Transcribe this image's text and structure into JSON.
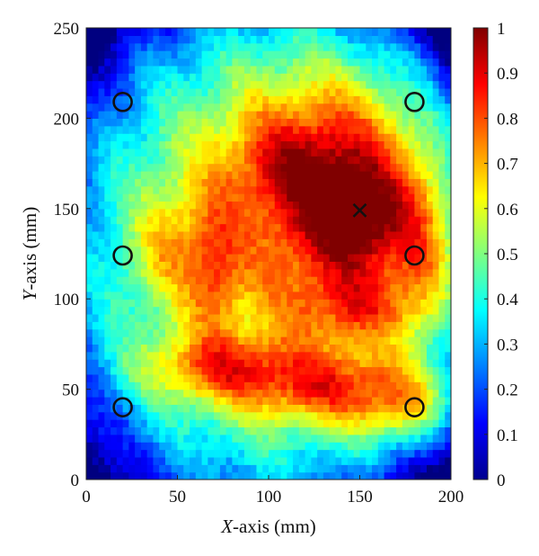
{
  "chart_data": {
    "type": "heatmap",
    "title": "",
    "xlabel_italic": "X",
    "xlabel_rest": "-axis (mm)",
    "ylabel_italic": "Y",
    "ylabel_rest": "-axis (mm)",
    "xlim": [
      0,
      200
    ],
    "ylim": [
      0,
      250
    ],
    "x_ticks": [
      "0",
      "50",
      "100",
      "150",
      "200"
    ],
    "y_ticks": [
      "0",
      "50",
      "100",
      "150",
      "200",
      "250"
    ],
    "colorbar": {
      "range": [
        0,
        1
      ],
      "ticks": [
        "0",
        "0.1",
        "0.2",
        "0.3",
        "0.4",
        "0.5",
        "0.6",
        "0.7",
        "0.8",
        "0.9",
        "1"
      ],
      "colormap": "jet"
    },
    "field_blobs": [
      {
        "x": 145,
        "y": 155,
        "sx": 45,
        "sy": 55,
        "amp": 0.38
      },
      {
        "x": 150,
        "y": 145,
        "sx": 18,
        "sy": 18,
        "amp": 0.22
      },
      {
        "x": 115,
        "y": 175,
        "sx": 28,
        "sy": 20,
        "amp": 0.18
      },
      {
        "x": 140,
        "y": 50,
        "sx": 45,
        "sy": 14,
        "amp": 0.3
      },
      {
        "x": 70,
        "y": 63,
        "sx": 30,
        "sy": 12,
        "amp": 0.26
      },
      {
        "x": 175,
        "y": 35,
        "sx": 20,
        "sy": 14,
        "amp": 0.22
      },
      {
        "x": 70,
        "y": 115,
        "sx": 10,
        "sy": 25,
        "amp": 0.22
      },
      {
        "x": 45,
        "y": 130,
        "sx": 14,
        "sy": 20,
        "amp": 0.16
      },
      {
        "x": 150,
        "y": 95,
        "sx": 22,
        "sy": 10,
        "amp": 0.14
      },
      {
        "x": 185,
        "y": 120,
        "sx": 12,
        "sy": 30,
        "amp": 0.14
      }
    ],
    "field_base": 0.55,
    "field_vignette": 0.32,
    "markers": {
      "circles": [
        {
          "x": 20,
          "y": 209
        },
        {
          "x": 180,
          "y": 209
        },
        {
          "x": 20,
          "y": 124
        },
        {
          "x": 180,
          "y": 124
        },
        {
          "x": 20,
          "y": 40
        },
        {
          "x": 180,
          "y": 40
        }
      ],
      "cross": {
        "x": 150,
        "y": 149
      }
    }
  }
}
